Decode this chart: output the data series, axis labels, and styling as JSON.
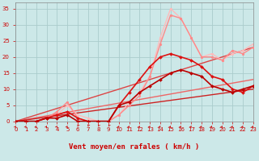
{
  "xlabel": "Vent moyen/en rafales ( km/h )",
  "xlim": [
    0,
    23
  ],
  "ylim": [
    0,
    37
  ],
  "xticks": [
    0,
    1,
    2,
    3,
    4,
    5,
    6,
    7,
    8,
    9,
    10,
    11,
    12,
    13,
    14,
    15,
    16,
    17,
    18,
    19,
    20,
    21,
    22,
    23
  ],
  "yticks": [
    0,
    5,
    10,
    15,
    20,
    25,
    30,
    35
  ],
  "bg_color": "#cce8e8",
  "grid_color": "#aacccc",
  "lines": [
    {
      "x": [
        0,
        1,
        2,
        3,
        4,
        5,
        6,
        7,
        8,
        9,
        10,
        11,
        12,
        13,
        14,
        15,
        16,
        17,
        18,
        19,
        20,
        21,
        22,
        23
      ],
      "y": [
        0,
        0,
        0,
        1,
        1,
        2,
        0,
        0,
        0,
        0,
        5,
        6,
        9,
        11,
        13,
        15,
        16,
        15,
        14,
        11,
        10,
        9,
        10,
        11
      ],
      "color": "#bb0000",
      "lw": 1.2,
      "marker": "D",
      "ms": 2.0,
      "zorder": 5
    },
    {
      "x": [
        0,
        1,
        2,
        3,
        4,
        5,
        6,
        7,
        8,
        9,
        10,
        11,
        12,
        13,
        14,
        15,
        16,
        17,
        18,
        19,
        20,
        21,
        22,
        23
      ],
      "y": [
        0,
        0,
        0,
        1,
        2,
        3,
        1,
        0,
        0,
        0,
        5,
        9,
        13,
        17,
        20,
        21,
        20,
        19,
        17,
        14,
        13,
        10,
        9,
        11
      ],
      "color": "#dd1111",
      "lw": 1.2,
      "marker": "D",
      "ms": 2.0,
      "zorder": 4
    },
    {
      "x": [
        0,
        1,
        2,
        3,
        4,
        5,
        6,
        7,
        8,
        9,
        10,
        11,
        12,
        13,
        14,
        15,
        16,
        17,
        18,
        19,
        20,
        21,
        22,
        23
      ],
      "y": [
        0,
        0,
        0,
        1,
        3,
        6,
        1,
        0,
        0,
        0,
        2,
        5,
        8,
        14,
        24,
        33,
        32,
        26,
        20,
        20,
        19,
        22,
        21,
        23
      ],
      "color": "#ff8888",
      "lw": 1.0,
      "marker": "o",
      "ms": 2.0,
      "zorder": 3
    },
    {
      "x": [
        0,
        1,
        2,
        3,
        4,
        5,
        6,
        7,
        8,
        9,
        10,
        11,
        12,
        13,
        14,
        15,
        16,
        17,
        18,
        19,
        20,
        21,
        22,
        23
      ],
      "y": [
        0,
        0,
        0,
        1,
        2,
        5,
        2,
        1,
        0,
        0,
        2,
        6,
        9,
        14,
        26,
        35,
        32,
        26,
        20,
        21,
        19,
        21,
        22,
        24
      ],
      "color": "#ffbbbb",
      "lw": 1.0,
      "marker": "o",
      "ms": 2.0,
      "zorder": 2
    },
    {
      "x": [
        0,
        23
      ],
      "y": [
        0,
        23
      ],
      "color": "#dd4444",
      "lw": 1.0,
      "marker": null,
      "ms": 0,
      "zorder": 1
    },
    {
      "x": [
        0,
        23
      ],
      "y": [
        0,
        13
      ],
      "color": "#ee6666",
      "lw": 1.0,
      "marker": null,
      "ms": 0,
      "zorder": 1
    },
    {
      "x": [
        0,
        23
      ],
      "y": [
        0,
        10
      ],
      "color": "#cc2222",
      "lw": 1.0,
      "marker": null,
      "ms": 0,
      "zorder": 1
    }
  ],
  "tick_color": "#cc0000",
  "tick_fontsize": 5.0,
  "xlabel_fontsize": 6.5,
  "xlabel_color": "#cc0000",
  "xlabel_fontweight": "bold",
  "arrow_dirs": [
    1,
    1,
    1,
    1,
    1,
    1,
    -1,
    -1,
    -1,
    -1,
    1,
    1,
    1,
    1,
    1,
    1,
    1,
    1,
    1,
    1,
    1,
    1,
    1,
    1
  ]
}
